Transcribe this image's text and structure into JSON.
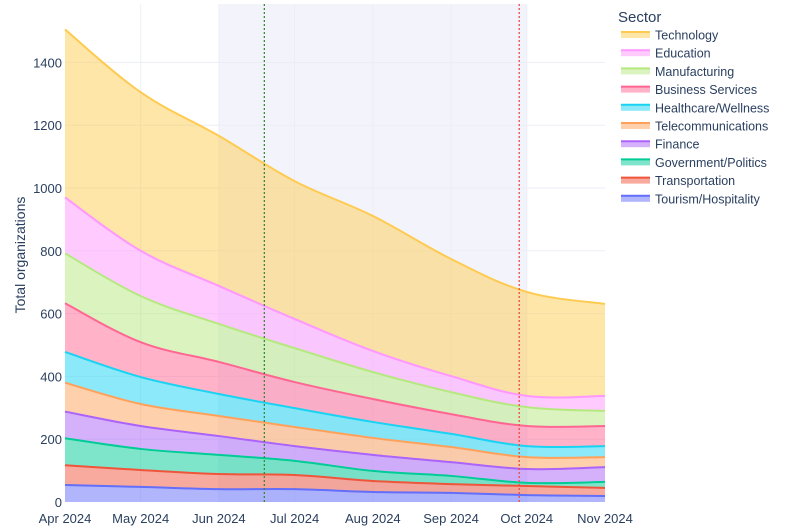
{
  "chart_data": {
    "type": "area",
    "stacked": true,
    "title": "",
    "xlabel": "",
    "ylabel": "Total organizations",
    "x": [
      "2024-04-01",
      "2024-05-01",
      "2024-06-01",
      "2024-07-01",
      "2024-08-01",
      "2024-09-01",
      "2024-10-01",
      "2024-11-01"
    ],
    "x_tick_labels": [
      "Apr 2024",
      "May 2024",
      "Jun 2024",
      "Jul 2024",
      "Aug 2024",
      "Sep 2024",
      "Oct 2024",
      "Nov 2024"
    ],
    "y_ticks": [
      0,
      200,
      400,
      600,
      800,
      1000,
      1200,
      1400
    ],
    "ylim": [
      0,
      1586
    ],
    "grid": true,
    "legend_title": "Sector",
    "legend_placement": "top-right",
    "series": [
      {
        "name": "Tourism/Hospitality",
        "color": "#636efa",
        "values": [
          54,
          48,
          41,
          41,
          32,
          29,
          22,
          19
        ]
      },
      {
        "name": "Transportation",
        "color": "#ef553b",
        "values": [
          63,
          54,
          48,
          45,
          35,
          28,
          29,
          26
        ]
      },
      {
        "name": "Government/Politics",
        "color": "#00cc96",
        "values": [
          86,
          67,
          61,
          45,
          32,
          26,
          10,
          19
        ]
      },
      {
        "name": "Finance",
        "color": "#ab63fa",
        "values": [
          85,
          73,
          60,
          47,
          51,
          44,
          44,
          47
        ]
      },
      {
        "name": "Telecommunications",
        "color": "#ffa15a",
        "values": [
          92,
          70,
          64,
          61,
          54,
          48,
          38,
          32
        ]
      },
      {
        "name": "Healthcare/Wellness",
        "color": "#19d3f3",
        "values": [
          98,
          86,
          70,
          60,
          51,
          42,
          35,
          35
        ]
      },
      {
        "name": "Business Services",
        "color": "#ff6692",
        "values": [
          155,
          111,
          102,
          83,
          73,
          63,
          64,
          64
        ]
      },
      {
        "name": "Manufacturing",
        "color": "#b6e880",
        "values": [
          159,
          147,
          121,
          108,
          86,
          70,
          60,
          48
        ]
      },
      {
        "name": "Education",
        "color": "#ff97ff",
        "values": [
          178,
          144,
          121,
          93,
          67,
          51,
          36,
          48
        ]
      },
      {
        "name": "Technology",
        "color": "#fecb52",
        "values": [
          535,
          505,
          478,
          439,
          430,
          373,
          331,
          293
        ]
      }
    ],
    "shaded_region": {
      "x0": "2024-06-01",
      "x1": "2024-10-01",
      "color": "#f3f4fb"
    },
    "vlines": [
      {
        "x": "2024-06-19",
        "color": "#3a8a3a",
        "style": "dotted"
      },
      {
        "x": "2024-09-28",
        "color": "#ef4c3c",
        "style": "dotted"
      }
    ]
  }
}
